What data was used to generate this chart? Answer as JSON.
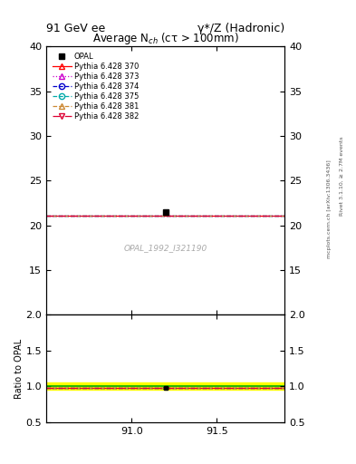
{
  "title_main": "91 GeV ee",
  "title_right": "γ*/Z (Hadronic)",
  "plot_title": "Average N$_{ch}$ (cτ > 100mm)",
  "ylabel_ratio": "Ratio to OPAL",
  "watermark": "OPAL_1992_I321190",
  "right_label": "mcplots.cern.ch [arXiv:1306.3436]",
  "right_label2": "Rivet 3.1.10, ≥ 2.7M events",
  "xmin": 90.5,
  "xmax": 91.9,
  "ymin_main": 10,
  "ymax_main": 40,
  "yticks_main": [
    15,
    20,
    25,
    30,
    35,
    40
  ],
  "ymin_ratio": 0.5,
  "ymax_ratio": 2.0,
  "yticks_ratio": [
    0.5,
    1.0,
    1.5,
    2.0
  ],
  "data_x": 91.2,
  "data_y": 21.45,
  "data_yerr": 0.25,
  "data_label": "OPAL",
  "mc_y": 21.1,
  "mc_ratio_y": 0.985,
  "series": [
    {
      "label": "Pythia 6.428 370",
      "color": "#ff0000",
      "linestyle": "-",
      "marker": "^",
      "mfc": "none"
    },
    {
      "label": "Pythia 6.428 373",
      "color": "#cc00cc",
      "linestyle": ":",
      "marker": "^",
      "mfc": "none"
    },
    {
      "label": "Pythia 6.428 374",
      "color": "#0000cc",
      "linestyle": "--",
      "marker": "o",
      "mfc": "none"
    },
    {
      "label": "Pythia 6.428 375",
      "color": "#00aaaa",
      "linestyle": "--",
      "marker": "o",
      "mfc": "none"
    },
    {
      "label": "Pythia 6.428 381",
      "color": "#cc8833",
      "linestyle": "--",
      "marker": "^",
      "mfc": "none"
    },
    {
      "label": "Pythia 6.428 382",
      "color": "#dd0033",
      "linestyle": "-.",
      "marker": "v",
      "mfc": "none"
    }
  ],
  "band_color": "#ffff00",
  "green_line_color": "#00aa00",
  "xticks": [
    91.0,
    91.5
  ]
}
